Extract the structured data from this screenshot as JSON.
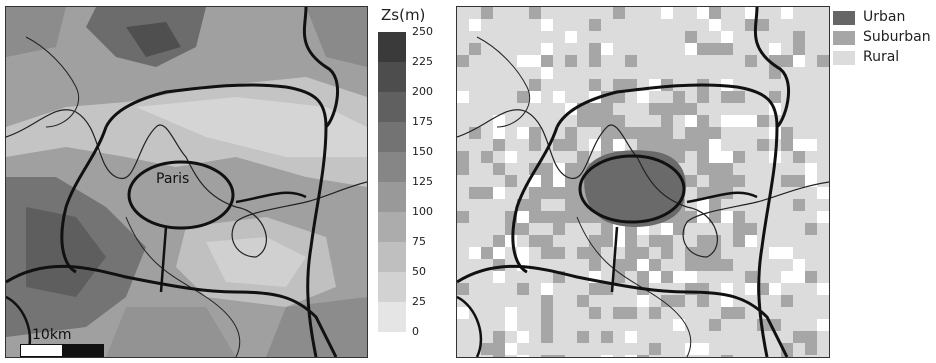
{
  "colorbar": {
    "title": "Zs(m)",
    "ticks": [
      "250",
      "225",
      "200",
      "175",
      "150",
      "125",
      "100",
      "75",
      "50",
      "25",
      "0"
    ],
    "colors": [
      "#3a3a3a",
      "#4d4d4d",
      "#606060",
      "#737373",
      "#868686",
      "#999999",
      "#acacac",
      "#bfbfbf",
      "#d2d2d2",
      "#e5e5e5"
    ]
  },
  "elevation_map": {
    "city_label": "Paris",
    "scale_label": "10km"
  },
  "land_use_map": {
    "legend": [
      {
        "label": "Urban",
        "color": "#666666"
      },
      {
        "label": "Suburban",
        "color": "#a6a6a6"
      },
      {
        "label": "Rural",
        "color": "#dcdcdc"
      }
    ]
  }
}
